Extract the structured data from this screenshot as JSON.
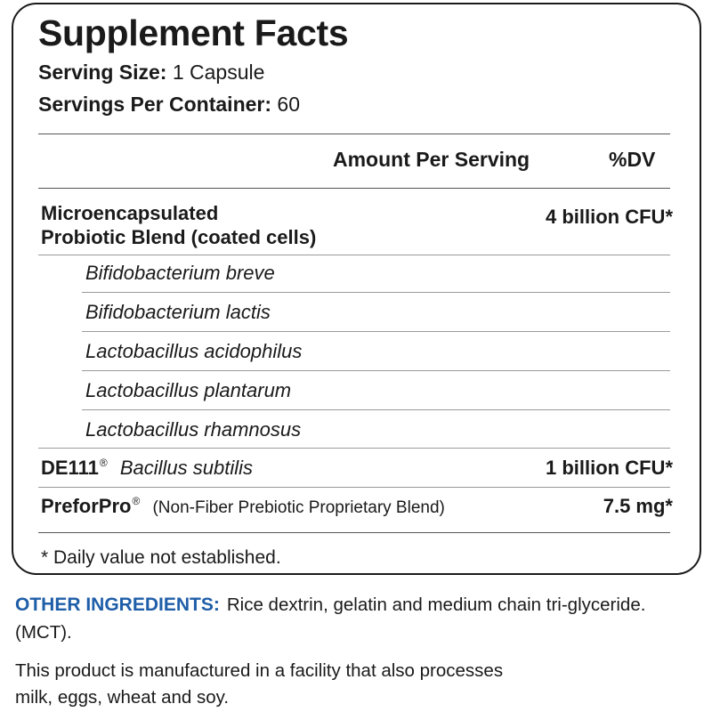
{
  "label": {
    "title": "Supplement Facts",
    "serving_size_label": "Serving Size:",
    "serving_size_value": "1 Capsule",
    "servings_per_container_label": "Servings Per Container:",
    "servings_per_container_value": "60",
    "amount_header": "Amount Per Serving",
    "dv_header": "%DV",
    "blend": {
      "name_line1": "Microencapsulated",
      "name_line2": "Probiotic Blend (coated cells)",
      "amount": "4 billion CFU*",
      "strains": [
        "Bifidobacterium breve",
        "Bifidobacterium lactis",
        "Lactobacillus acidophilus",
        "Lactobacillus plantarum",
        "Lactobacillus rhamnosus"
      ]
    },
    "de111": {
      "name": "DE111",
      "mark": "®",
      "description": "Bacillus subtilis",
      "amount": "1 billion CFU*"
    },
    "preforpro": {
      "name": "PreforPro",
      "mark": "®",
      "description": "(Non-Fiber Prebiotic Proprietary Blend)",
      "amount": "7.5 mg*"
    },
    "footnote": "* Daily value not established."
  },
  "other_ingredients": {
    "label": "OTHER INGREDIENTS:",
    "text": "Rice dextrin, gelatin and medium chain tri-glyceride. (MCT)."
  },
  "facility_note": "This product is manufactured in a facility that also processes milk, eggs, wheat and soy.",
  "colors": {
    "accent_blue": "#1f5ea8",
    "border": "#1a1a1a"
  }
}
